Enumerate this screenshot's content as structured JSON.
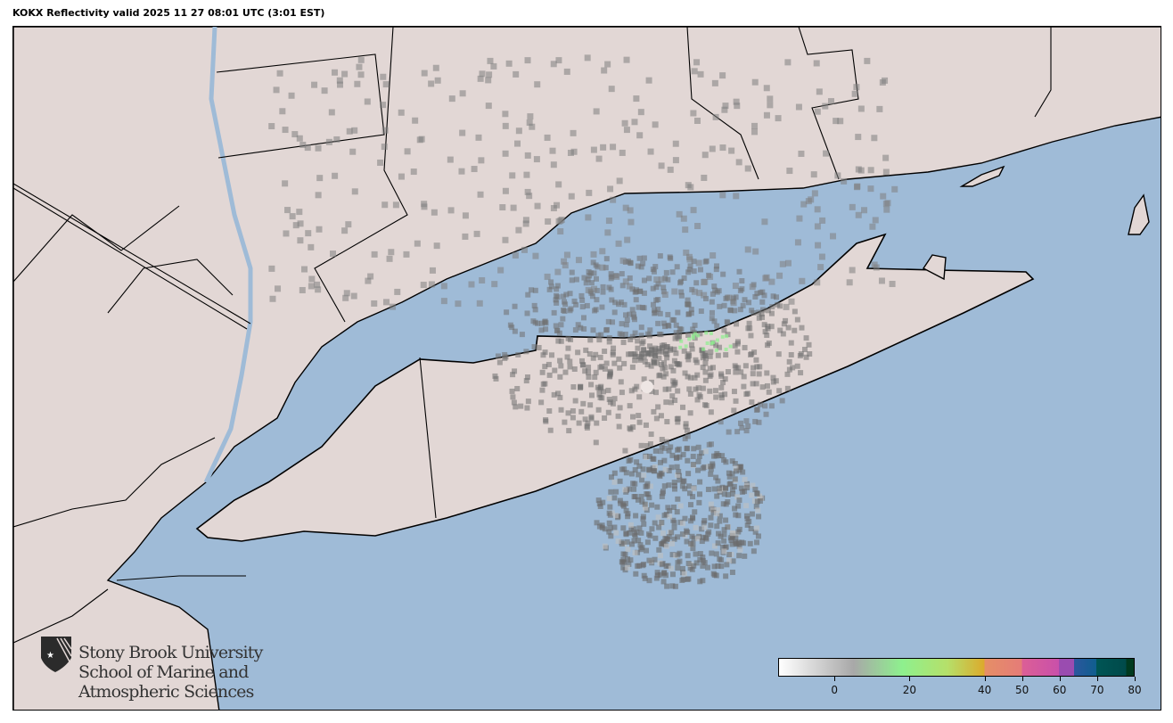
{
  "title": "KOKX Reflectivity valid 2025 11 27 08:01 UTC (3:01 EST)",
  "colors": {
    "ocean": "#9fbbd7",
    "land": "#e2d7d5",
    "borders": "#000000",
    "echo": "#6f6f6f"
  },
  "radar": {
    "site": "KOKX"
  },
  "colorbar": {
    "min": -15,
    "max": 80,
    "ticks": [
      "0",
      "20",
      "40",
      "50",
      "60",
      "70",
      "80"
    ],
    "tick_values": [
      0,
      20,
      40,
      50,
      60,
      70,
      80
    ],
    "stops": [
      {
        "v": -15,
        "c": "#ffffff"
      },
      {
        "v": 5,
        "c": "#a8a8a8"
      },
      {
        "v": 18,
        "c": "#8ef08e"
      },
      {
        "v": 30,
        "c": "#b5e06a"
      },
      {
        "v": 40,
        "c": "#dcaa2c"
      },
      {
        "v": 40.01,
        "c": "#e58f66"
      },
      {
        "v": 50,
        "c": "#e57c78"
      },
      {
        "v": 50.01,
        "c": "#dc5f96"
      },
      {
        "v": 60,
        "c": "#c950aa"
      },
      {
        "v": 60.01,
        "c": "#9a4cb0"
      },
      {
        "v": 64,
        "c": "#9a4cb0"
      },
      {
        "v": 64.01,
        "c": "#2c579e"
      },
      {
        "v": 70,
        "c": "#0f5e8e"
      },
      {
        "v": 70.01,
        "c": "#005555"
      },
      {
        "v": 78,
        "c": "#004a4a"
      },
      {
        "v": 78.01,
        "c": "#003a20"
      },
      {
        "v": 80,
        "c": "#003a20"
      }
    ]
  },
  "logo": {
    "line1": "Stony Brook University",
    "line2": "School of Marine and",
    "line3": "Atmospheric Sciences"
  }
}
